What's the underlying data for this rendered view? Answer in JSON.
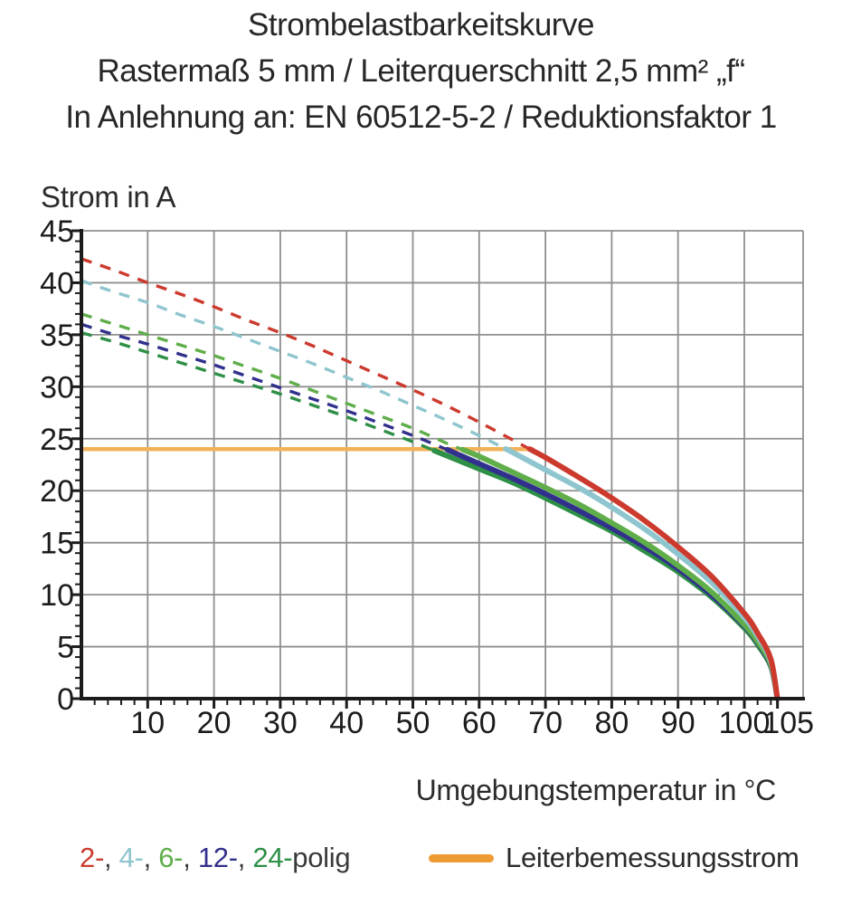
{
  "title_lines": {
    "line1": "Strombelastbarkeitskurve",
    "line2": "Rastermaß 5 mm / Leiterquerschnitt 2,5 mm² „f“",
    "line3": "In Anlehnung an: EN 60512-5-2 / Reduktionsfaktor 1"
  },
  "chart_data": {
    "type": "line",
    "title": "Strombelastbarkeitskurve",
    "subtitle": "Rastermaß 5 mm / Leiterquerschnitt 2,5 mm² „f“",
    "standard_note": "In Anlehnung an: EN 60512-5-2 / Reduktionsfaktor 1",
    "xlabel": "Umgebungstemperatur in °C",
    "ylabel": "Strom in A",
    "xlim": [
      0,
      108.5
    ],
    "ylim": [
      0,
      45
    ],
    "grid": true,
    "grid_color": "#8f8f8f",
    "axis_color": "#1c1c1c",
    "tick_label_color": "#1c1c1c",
    "axis_title_color": "#2b2b2b",
    "x_gridlines": [
      10,
      20,
      30,
      40,
      50,
      60,
      70,
      80,
      90,
      100
    ],
    "y_gridlines": [
      5,
      10,
      15,
      20,
      25,
      30,
      35,
      40,
      45
    ],
    "x_minor_step": 2,
    "y_minor_step": 1,
    "x_major_ticks": [
      {
        "v": 10,
        "label": "10",
        "dx": 0
      },
      {
        "v": 20,
        "label": "20",
        "dx": 0
      },
      {
        "v": 30,
        "label": "30",
        "dx": 0
      },
      {
        "v": 40,
        "label": "40",
        "dx": 0
      },
      {
        "v": 50,
        "label": "50",
        "dx": 0
      },
      {
        "v": 60,
        "label": "60",
        "dx": 0
      },
      {
        "v": 70,
        "label": "70",
        "dx": 0
      },
      {
        "v": 80,
        "label": "80",
        "dx": 0
      },
      {
        "v": 90,
        "label": "90",
        "dx": 0
      },
      {
        "v": 100,
        "label": "100",
        "dx": 0
      },
      {
        "v": 105,
        "label": "105",
        "dx": 12
      }
    ],
    "y_major_ticks": [
      {
        "v": 0,
        "label": "0"
      },
      {
        "v": 5,
        "label": "5"
      },
      {
        "v": 10,
        "label": "10"
      },
      {
        "v": 15,
        "label": "15"
      },
      {
        "v": 20,
        "label": "20"
      },
      {
        "v": 25,
        "label": "25"
      },
      {
        "v": 30,
        "label": "30"
      },
      {
        "v": 35,
        "label": "35"
      },
      {
        "v": 40,
        "label": "40"
      },
      {
        "v": 45,
        "label": "45"
      }
    ],
    "x": [
      0,
      5,
      10,
      15,
      20,
      25,
      30,
      35,
      40,
      45,
      50,
      55,
      60,
      65,
      70,
      75,
      80,
      85,
      90,
      95,
      100,
      102,
      104,
      105
    ],
    "rated_current": {
      "label": "Leiterbemessungsstrom",
      "value": 24,
      "x_start": 0,
      "x_end": 68,
      "line_color": "#f3b259",
      "swatch_color": "#ee9b33"
    },
    "series": [
      {
        "name": "2-polig",
        "legend_label": "2-",
        "color": "#cc3a2e",
        "start_value": 42.3,
        "solid_from": 67.6,
        "values": [
          42.3,
          41.2,
          40.0,
          38.9,
          37.7,
          36.4,
          35.2,
          33.9,
          32.5,
          31.1,
          29.7,
          28.2,
          26.6,
          24.9,
          23.2,
          21.3,
          19.3,
          17.1,
          14.6,
          11.8,
          8.2,
          6.3,
          3.8,
          0
        ]
      },
      {
        "name": "4-polig",
        "legend_label": "4-",
        "color": "#8ec5ce",
        "start_value": 40.2,
        "solid_from": 64.0,
        "values": [
          40.2,
          39.1,
          38.1,
          36.9,
          35.8,
          34.6,
          33.4,
          32.2,
          30.9,
          29.6,
          28.2,
          26.8,
          25.3,
          23.7,
          22.0,
          20.3,
          18.4,
          16.3,
          13.9,
          11.2,
          7.8,
          6.0,
          3.6,
          0
        ]
      },
      {
        "name": "6-polig",
        "legend_label": "6-",
        "color": "#5fae4a",
        "start_value": 37.0,
        "solid_from": 57.5,
        "values": [
          37.0,
          36.0,
          35.0,
          34.0,
          33.0,
          31.9,
          30.8,
          29.6,
          28.4,
          27.2,
          26.0,
          24.6,
          23.3,
          21.8,
          20.3,
          18.7,
          16.9,
          15.0,
          12.8,
          10.3,
          7.1,
          5.5,
          3.3,
          0
        ]
      },
      {
        "name": "12-polig",
        "legend_label": "12-",
        "color": "#31308d",
        "start_value": 36.0,
        "solid_from": 55.2,
        "values": [
          36.0,
          35.0,
          34.1,
          33.1,
          32.1,
          31.0,
          29.9,
          28.8,
          27.7,
          26.5,
          25.3,
          24.0,
          22.6,
          21.2,
          19.7,
          18.1,
          16.4,
          14.6,
          12.5,
          10.0,
          7.0,
          5.4,
          3.2,
          0
        ]
      },
      {
        "name": "24-polig",
        "legend_label": "24-",
        "color": "#2e8f46",
        "start_value": 35.2,
        "solid_from": 53.2,
        "values": [
          35.2,
          34.3,
          33.3,
          32.3,
          31.3,
          30.3,
          29.3,
          28.2,
          27.1,
          25.9,
          24.7,
          23.4,
          22.1,
          20.8,
          19.3,
          17.7,
          16.1,
          14.2,
          12.2,
          9.8,
          6.8,
          5.2,
          3.1,
          0
        ]
      }
    ],
    "legend": {
      "suffix": "polig",
      "separator": ", ",
      "label_color": "#3a3a3a"
    }
  }
}
